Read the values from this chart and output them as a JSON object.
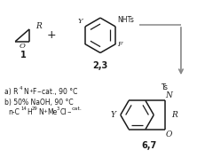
{
  "bg_color": "#ffffff",
  "line_color": "#1a1a1a",
  "arrow_color": "#888888",
  "label1": "1",
  "label23": "2,3",
  "label67": "6,7"
}
